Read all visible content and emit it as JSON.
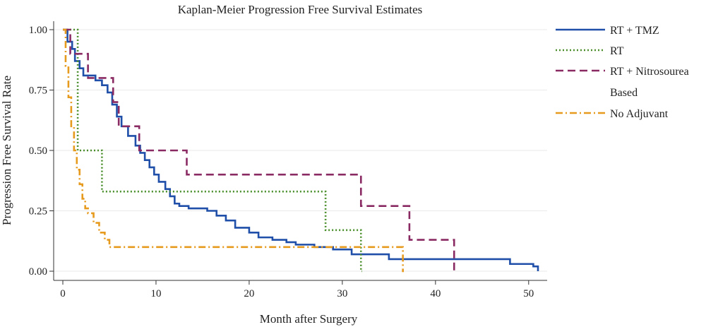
{
  "chart_data": {
    "type": "line",
    "step": true,
    "title": "Kaplan-Meier Progression Free Survival Estimates",
    "xlabel": "Month after Surgery",
    "ylabel": "Progression Free Survival Rate",
    "xlim": [
      0,
      51.5
    ],
    "ylim": [
      0,
      1
    ],
    "xticks": [
      0,
      10,
      20,
      30,
      40,
      50
    ],
    "yticks": [
      "0.00",
      "0.25",
      "0.50",
      "0.75",
      "1.00"
    ],
    "ytick_values": [
      0,
      0.25,
      0.5,
      0.75,
      1
    ],
    "grid": true,
    "legend_position": "right",
    "series": [
      {
        "name": "RT + TMZ",
        "color": "#1f4fa8",
        "dash": "solid",
        "x": [
          0,
          0.5,
          1,
          1.3,
          1.8,
          2.2,
          3.5,
          4.2,
          4.8,
          5.3,
          5.8,
          6.3,
          7,
          7.8,
          8.3,
          8.8,
          9.3,
          9.8,
          10.3,
          11,
          11.5,
          12,
          12.5,
          13.5,
          15.5,
          16.5,
          17.5,
          18.5,
          20,
          21,
          22.5,
          24,
          25,
          27,
          29,
          31,
          35,
          48,
          50.5,
          51
        ],
        "y": [
          1,
          0.95,
          0.92,
          0.87,
          0.84,
          0.81,
          0.79,
          0.77,
          0.74,
          0.69,
          0.64,
          0.6,
          0.56,
          0.52,
          0.49,
          0.46,
          0.43,
          0.4,
          0.37,
          0.34,
          0.31,
          0.28,
          0.27,
          0.26,
          0.25,
          0.23,
          0.21,
          0.18,
          0.16,
          0.14,
          0.13,
          0.12,
          0.11,
          0.1,
          0.09,
          0.07,
          0.05,
          0.03,
          0.02,
          0.0
        ]
      },
      {
        "name": "RT",
        "color": "#4a8f2c",
        "dash": "dotted",
        "x": [
          0,
          1.6,
          4.2,
          28.2,
          32,
          32.1
        ],
        "y": [
          1,
          0.5,
          0.33,
          0.17,
          0.0,
          0.0
        ]
      },
      {
        "name": "RT + Nitrosourea",
        "color": "#8a2a63",
        "dash": "dashed",
        "x": [
          0,
          0.8,
          2.7,
          5.4,
          6,
          7.2,
          8.2,
          13.3,
          32,
          37.2,
          42,
          42.05
        ],
        "y": [
          1,
          0.9,
          0.8,
          0.7,
          0.6,
          0.6,
          0.5,
          0.4,
          0.27,
          0.13,
          0.0,
          0.0
        ]
      },
      {
        "name": "Based",
        "color": "#ffffff",
        "dash": "none",
        "x": [],
        "y": []
      },
      {
        "name": "No Adjuvant",
        "color": "#e69a1e",
        "dash": "dashdot",
        "x": [
          0,
          0.3,
          0.6,
          0.9,
          1.2,
          1.5,
          1.8,
          2.1,
          2.4,
          2.7,
          3.3,
          3.9,
          4.5,
          5,
          36.5,
          36.6
        ],
        "y": [
          1,
          0.85,
          0.72,
          0.6,
          0.5,
          0.42,
          0.36,
          0.3,
          0.26,
          0.24,
          0.2,
          0.16,
          0.13,
          0.1,
          0.0,
          0.0
        ]
      }
    ]
  }
}
